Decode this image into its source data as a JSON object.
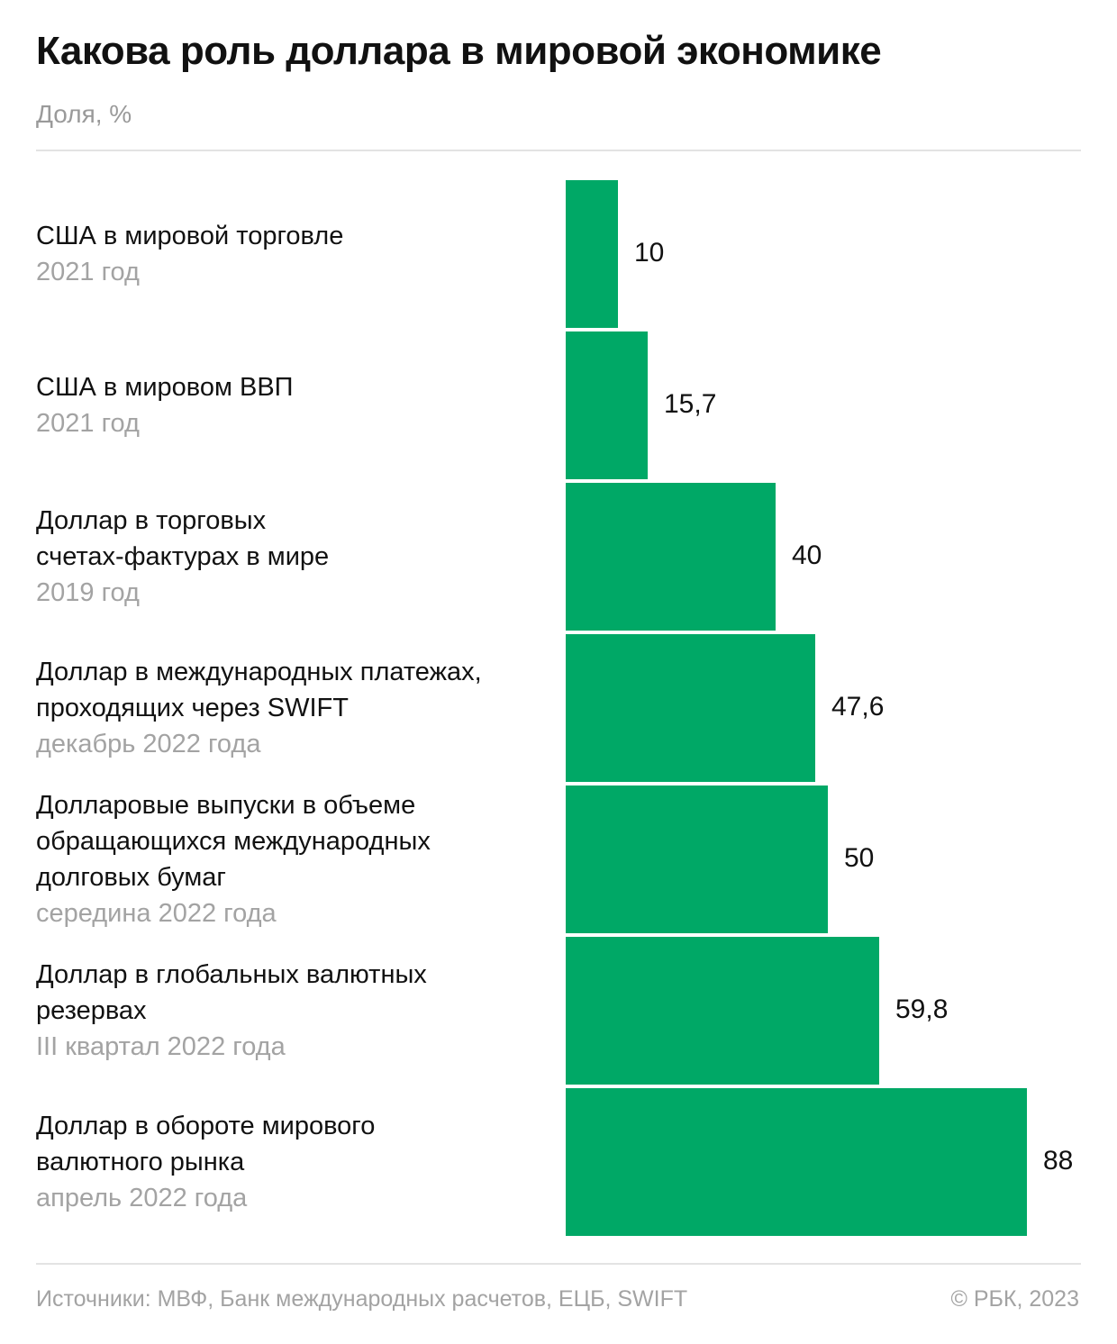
{
  "title": "Какова роль доллара в мировой экономике",
  "subtitle": "Доля, %",
  "colors": {
    "bar": "#00a866",
    "period_text": "#a3a3a3"
  },
  "chart_data": {
    "type": "bar",
    "orientation": "horizontal",
    "title": "Какова роль доллара в мировой экономике",
    "unit": "Доля, %",
    "categories": [
      {
        "lines": [
          "США в мировой торговле"
        ],
        "period": "2021 год"
      },
      {
        "lines": [
          "США в мировом ВВП"
        ],
        "period": "2021 год"
      },
      {
        "lines": [
          "Доллар в торговых",
          "счетах-фактурах в мире"
        ],
        "period": "2019 год"
      },
      {
        "lines": [
          "Доллар в международных платежах,",
          "проходящих через SWIFT"
        ],
        "period": "декабрь 2022 года"
      },
      {
        "lines": [
          "Долларовые выпуски в объеме",
          "обращающихся международных",
          "долговых бумаг"
        ],
        "period": "середина 2022 года"
      },
      {
        "lines": [
          "Доллар в глобальных валютных",
          "резервах"
        ],
        "period": "III квартал 2022 года"
      },
      {
        "lines": [
          "Доллар в обороте мирового",
          "валютного рынка"
        ],
        "period": "апрель 2022 года"
      }
    ],
    "values": [
      10,
      15.7,
      40,
      47.6,
      50,
      59.8,
      88
    ],
    "value_labels": [
      "10",
      "15,7",
      "40",
      "47,6",
      "50",
      "59,8",
      "88"
    ],
    "xlim": [
      0,
      88
    ],
    "grid": false,
    "legend": "none"
  },
  "footer": {
    "sources": "Источники: МВФ, Банк международных расчетов, ЕЦБ, SWIFT",
    "copyright": "© РБК, 2023"
  }
}
